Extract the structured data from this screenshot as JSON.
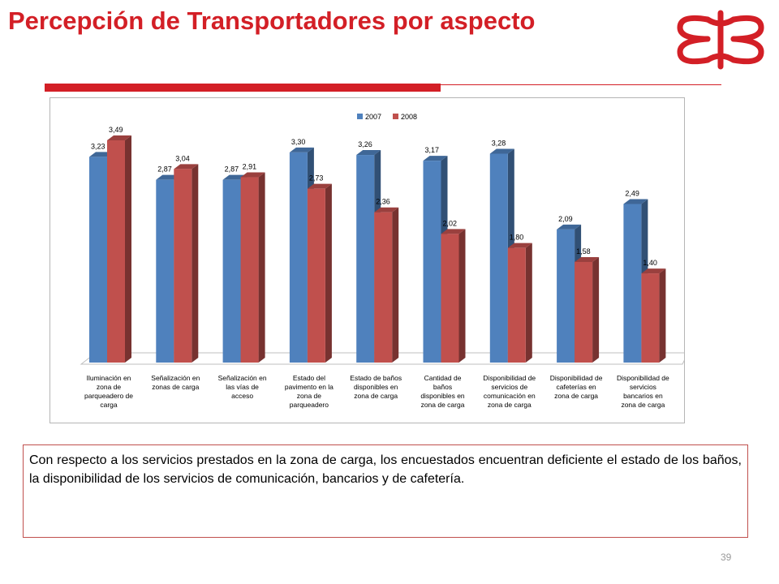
{
  "slide": {
    "title": "Percepción de Transportadores por aspecto",
    "description": "Con respecto a los servicios prestados en la zona de carga, los encuestados encuentran deficiente el estado de los baños, la disponibilidad de los servicios de comunicación, bancarios y de cafetería.",
    "page_number": "39",
    "accent_color": "#d31f26"
  },
  "chart_data": {
    "type": "bar",
    "categories": [
      [
        "Iluminación en",
        "zona de",
        "parqueadero de",
        "carga"
      ],
      [
        "Señalización en",
        "zonas de carga"
      ],
      [
        "Señalización en",
        "las vías de",
        "acceso"
      ],
      [
        "Estado del",
        "pavimento en la",
        "zona de",
        "parqueadero"
      ],
      [
        "Estado de baños",
        "disponibles en",
        "zona de carga"
      ],
      [
        "Cantidad de",
        "baños",
        "disponibles en",
        "zona de carga"
      ],
      [
        "Disponibilidad de",
        "servicios de",
        "comunicación en",
        "zona de carga"
      ],
      [
        "Disponibilidad de",
        "cafeterías en",
        "zona de carga"
      ],
      [
        "Disponibilidad de",
        "servicios",
        "bancarios en",
        "zona de carga"
      ]
    ],
    "series": [
      {
        "name": "2007",
        "color": "#4f81bd",
        "values": [
          3.23,
          2.87,
          2.87,
          3.3,
          3.26,
          3.17,
          3.28,
          2.09,
          2.49
        ],
        "labels": [
          "3,23",
          "2,87",
          "2,87",
          "3,30",
          "3,26",
          "3,17",
          "3,28",
          "2,09",
          "2,49"
        ]
      },
      {
        "name": "2008",
        "color": "#c0504d",
        "values": [
          3.49,
          3.04,
          2.91,
          2.73,
          2.36,
          2.02,
          1.8,
          1.58,
          1.4
        ],
        "labels": [
          "3,49",
          "3,04",
          "2,91",
          "2,73",
          "2,36",
          "2,02",
          "1,80",
          "1,58",
          "1,40"
        ]
      }
    ],
    "legend_position": "top",
    "grid": false,
    "three_d": true
  }
}
